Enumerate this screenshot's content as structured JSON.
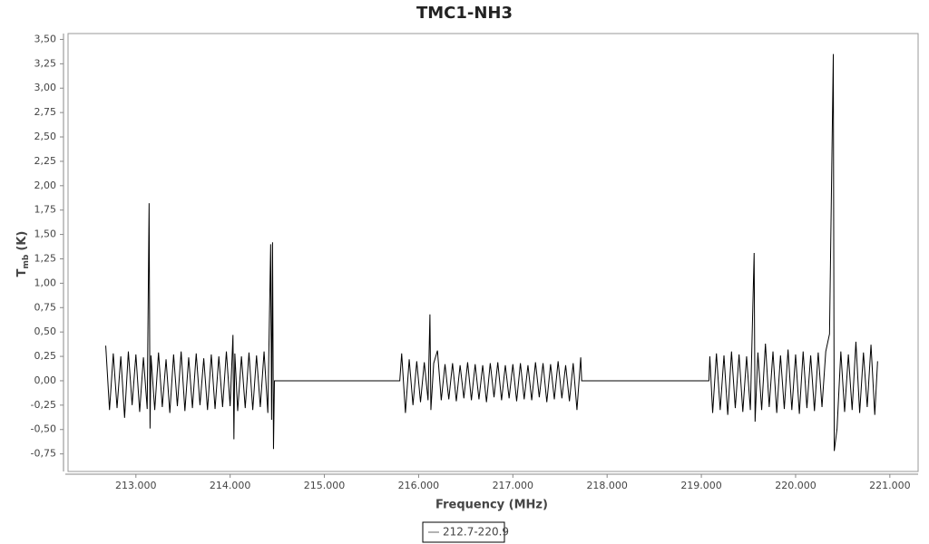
{
  "chart_data": {
    "type": "line",
    "title": "TMC1-NH3",
    "x_label": "Frequency (MHz)",
    "y_label_main": "T",
    "y_label_sub": "mb",
    "y_label_unit": "(K)",
    "xlim": [
      212.28,
      221.3
    ],
    "ylim": [
      -0.93,
      3.56
    ],
    "xticks": [
      {
        "value": 213,
        "label": "213.000"
      },
      {
        "value": 214,
        "label": "214.000"
      },
      {
        "value": 215,
        "label": "215.000"
      },
      {
        "value": 216,
        "label": "216.000"
      },
      {
        "value": 217,
        "label": "217.000"
      },
      {
        "value": 218,
        "label": "218.000"
      },
      {
        "value": 219,
        "label": "219.000"
      },
      {
        "value": 220,
        "label": "220.000"
      },
      {
        "value": 221,
        "label": "221.000"
      }
    ],
    "yticks": [
      {
        "value": -0.75,
        "label": "-0,75"
      },
      {
        "value": -0.5,
        "label": "-0,50"
      },
      {
        "value": -0.25,
        "label": "-0,25"
      },
      {
        "value": 0,
        "label": "0,00"
      },
      {
        "value": 0.25,
        "label": "0,25"
      },
      {
        "value": 0.5,
        "label": "0,50"
      },
      {
        "value": 0.75,
        "label": "0,75"
      },
      {
        "value": 1,
        "label": "1,00"
      },
      {
        "value": 1.25,
        "label": "1,25"
      },
      {
        "value": 1.5,
        "label": "1,50"
      },
      {
        "value": 1.75,
        "label": "1,75"
      },
      {
        "value": 2,
        "label": "2,00"
      },
      {
        "value": 2.25,
        "label": "2,25"
      },
      {
        "value": 2.5,
        "label": "2,50"
      },
      {
        "value": 2.75,
        "label": "2,75"
      },
      {
        "value": 3,
        "label": "3,00"
      },
      {
        "value": 3.25,
        "label": "3,25"
      },
      {
        "value": 3.5,
        "label": "3,50"
      }
    ],
    "x": [
      212.68,
      212.72,
      212.76,
      212.8,
      212.84,
      212.88,
      212.92,
      212.96,
      213.0,
      213.04,
      213.08,
      213.12,
      213.14,
      213.15,
      213.16,
      213.2,
      213.24,
      213.28,
      213.32,
      213.36,
      213.4,
      213.44,
      213.48,
      213.52,
      213.56,
      213.6,
      213.64,
      213.68,
      213.72,
      213.76,
      213.8,
      213.84,
      213.88,
      213.92,
      213.96,
      214.0,
      214.03,
      214.04,
      214.05,
      214.08,
      214.12,
      214.16,
      214.2,
      214.24,
      214.28,
      214.32,
      214.36,
      214.4,
      214.43,
      214.44,
      214.45,
      214.46,
      214.47,
      215.8,
      215.82,
      215.86,
      215.9,
      215.94,
      215.98,
      216.02,
      216.06,
      216.1,
      216.12,
      216.13,
      216.16,
      216.2,
      216.24,
      216.28,
      216.32,
      216.36,
      216.4,
      216.44,
      216.48,
      216.52,
      216.56,
      216.6,
      216.64,
      216.68,
      216.72,
      216.76,
      216.8,
      216.84,
      216.88,
      216.92,
      216.96,
      217.0,
      217.04,
      217.08,
      217.12,
      217.16,
      217.2,
      217.24,
      217.28,
      217.32,
      217.36,
      217.4,
      217.44,
      217.48,
      217.52,
      217.56,
      217.6,
      217.64,
      217.68,
      217.72,
      217.73,
      219.08,
      219.09,
      219.12,
      219.16,
      219.2,
      219.24,
      219.28,
      219.32,
      219.36,
      219.4,
      219.44,
      219.48,
      219.52,
      219.56,
      219.57,
      219.6,
      219.64,
      219.68,
      219.72,
      219.76,
      219.8,
      219.84,
      219.88,
      219.92,
      219.96,
      220.0,
      220.04,
      220.08,
      220.12,
      220.16,
      220.2,
      220.24,
      220.28,
      220.32,
      220.36,
      220.4,
      220.41,
      220.44,
      220.48,
      220.52,
      220.56,
      220.6,
      220.64,
      220.68,
      220.72,
      220.76,
      220.8,
      220.84,
      220.87
    ],
    "series": [
      {
        "name": "212.7-220.9",
        "color": "#000000",
        "values": [
          0.36,
          -0.3,
          0.28,
          -0.28,
          0.25,
          -0.38,
          0.3,
          -0.25,
          0.27,
          -0.32,
          0.24,
          -0.29,
          1.82,
          -0.49,
          0.26,
          -0.3,
          0.29,
          -0.27,
          0.22,
          -0.33,
          0.27,
          -0.26,
          0.3,
          -0.31,
          0.24,
          -0.28,
          0.28,
          -0.25,
          0.23,
          -0.3,
          0.27,
          -0.29,
          0.25,
          -0.27,
          0.3,
          -0.26,
          0.47,
          -0.6,
          0.28,
          -0.31,
          0.25,
          -0.28,
          0.29,
          -0.3,
          0.26,
          -0.27,
          0.3,
          -0.33,
          1.4,
          -0.4,
          1.42,
          -0.7,
          0,
          0,
          0.28,
          -0.33,
          0.22,
          -0.25,
          0.2,
          -0.22,
          0.19,
          -0.2,
          0.68,
          -0.3,
          0.18,
          0.31,
          -0.2,
          0.17,
          -0.19,
          0.18,
          -0.21,
          0.16,
          -0.18,
          0.19,
          -0.2,
          0.17,
          -0.19,
          0.16,
          -0.22,
          0.18,
          -0.17,
          0.19,
          -0.2,
          0.16,
          -0.18,
          0.17,
          -0.21,
          0.18,
          -0.19,
          0.16,
          -0.2,
          0.19,
          -0.17,
          0.18,
          -0.22,
          0.17,
          -0.19,
          0.2,
          -0.18,
          0.16,
          -0.21,
          0.18,
          -0.3,
          0.24,
          0,
          0,
          0.25,
          -0.33,
          0.28,
          -0.3,
          0.26,
          -0.35,
          0.3,
          -0.28,
          0.27,
          -0.32,
          0.25,
          -0.3,
          1.31,
          -0.42,
          0.29,
          -0.3,
          0.38,
          -0.27,
          0.3,
          -0.33,
          0.26,
          -0.29,
          0.32,
          -0.3,
          0.27,
          -0.34,
          0.3,
          -0.28,
          0.26,
          -0.31,
          0.29,
          -0.27,
          0.3,
          0.48,
          3.35,
          -0.72,
          -0.49,
          0.3,
          -0.32,
          0.27,
          -0.3,
          0.4,
          -0.33,
          0.29,
          -0.27,
          0.37,
          -0.35,
          0.2
        ]
      }
    ],
    "legend": "bottom"
  }
}
